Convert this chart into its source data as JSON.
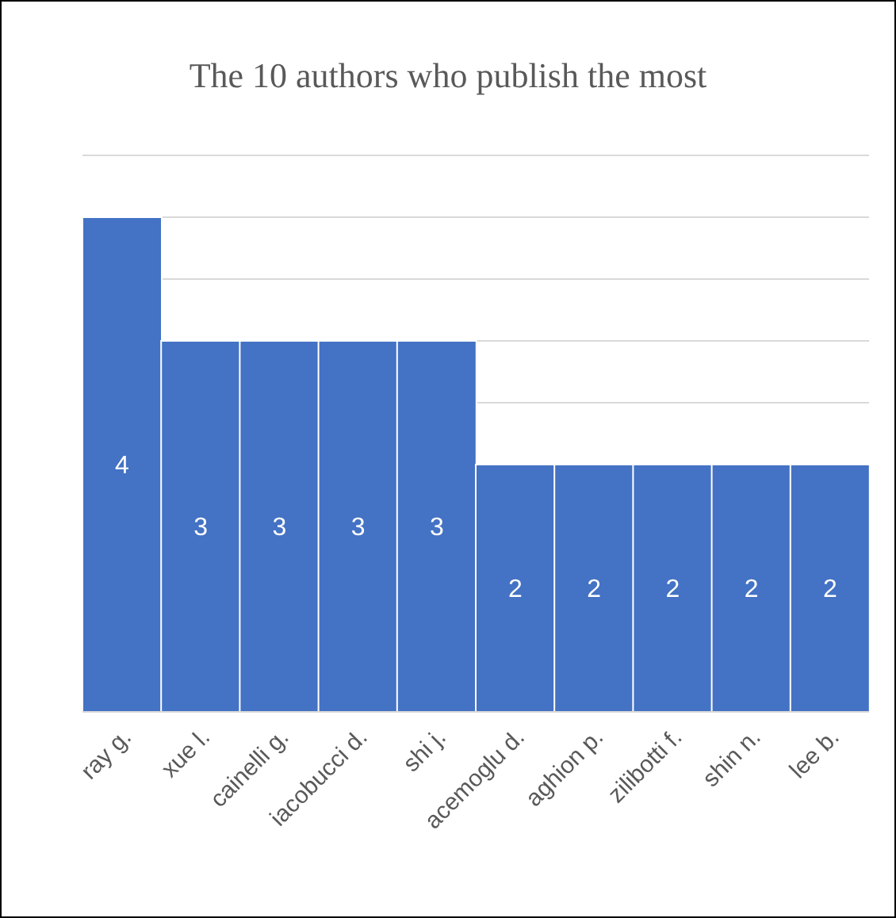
{
  "chart_data": {
    "type": "bar",
    "title": "The 10 authors who publish the most",
    "categories": [
      "ray g.",
      "xue l.",
      "cainelli g.",
      "iacobucci d.",
      "shi j.",
      "acemoglu d.",
      "aghion p.",
      "zilibotti f.",
      "shin n.",
      "lee b."
    ],
    "values": [
      4,
      3,
      3,
      3,
      3,
      2,
      2,
      2,
      2,
      2
    ],
    "color": "#4472c4",
    "ylim": [
      0,
      4.5
    ],
    "grid": "y",
    "data_labels": true,
    "tick_labels": "x"
  }
}
